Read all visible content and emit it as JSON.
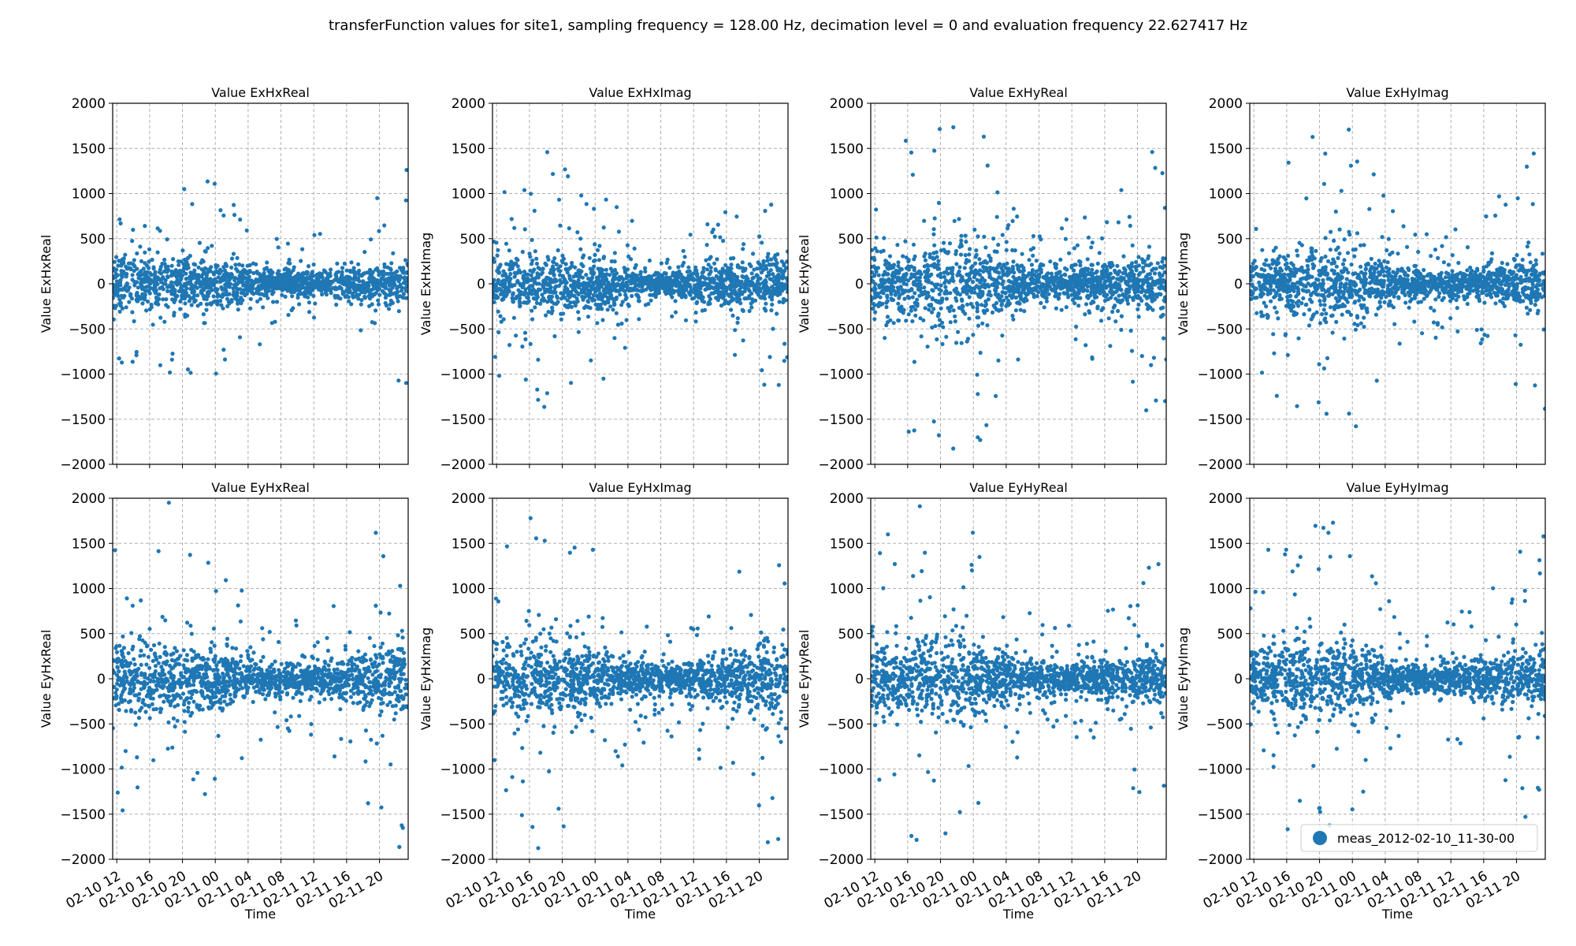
{
  "figure": {
    "suptitle": "transferFunction values for site1, sampling frequency = 128.00 Hz, decimation level = 0 and evaluation frequency 22.627417 Hz"
  },
  "chart_data": [
    {
      "type": "scatter",
      "title": "Value ExHxReal",
      "xlabel": "",
      "ylabel": "Value ExHxReal",
      "ylim": [
        -2000,
        2000
      ],
      "yticks": [
        -2000,
        -1500,
        -1000,
        -500,
        0,
        500,
        1000,
        1500,
        2000
      ],
      "xrange": [
        "2012-02-10 11:30",
        "2012-02-11 23:30"
      ],
      "xticks": [
        "02-10 12",
        "02-10 16",
        "02-10 20",
        "02-11 00",
        "02-11 04",
        "02-11 08",
        "02-11 12",
        "02-11 16",
        "02-11 20"
      ],
      "grid": true,
      "series": [
        {
          "name": "meas_2012-02-10_11-30-00",
          "color": "#1f77b4",
          "core_spread": [
            350,
            330,
            320,
            340,
            300,
            250,
            170,
            160,
            180,
            210,
            260,
            300
          ],
          "outlier_spread": [
            900,
            900,
            1000,
            1200,
            1100,
            900,
            500,
            500,
            600,
            700,
            1000,
            1400
          ]
        }
      ]
    },
    {
      "type": "scatter",
      "title": "Value ExHxImag",
      "xlabel": "",
      "ylabel": "Value ExHxImag",
      "ylim": [
        -2000,
        2000
      ],
      "yticks": [
        -2000,
        -1500,
        -1000,
        -500,
        0,
        500,
        1000,
        1500,
        2000
      ],
      "xrange": [
        "2012-02-10 11:30",
        "2012-02-11 23:30"
      ],
      "xticks": [
        "02-10 12",
        "02-10 16",
        "02-10 20",
        "02-11 00",
        "02-11 04",
        "02-11 08",
        "02-11 12",
        "02-11 16",
        "02-11 20"
      ],
      "grid": true,
      "series": [
        {
          "name": "meas_2012-02-10_11-30-00",
          "color": "#1f77b4",
          "core_spread": [
            330,
            340,
            360,
            350,
            330,
            240,
            170,
            180,
            230,
            270,
            300,
            320
          ],
          "outlier_spread": [
            1000,
            1100,
            1500,
            1400,
            1200,
            800,
            500,
            500,
            700,
            900,
            1100,
            1500
          ]
        }
      ]
    },
    {
      "type": "scatter",
      "title": "Value ExHyReal",
      "xlabel": "",
      "ylabel": "Value ExHyReal",
      "ylim": [
        -2000,
        2000
      ],
      "yticks": [
        -2000,
        -1500,
        -1000,
        -500,
        0,
        500,
        1000,
        1500,
        2000
      ],
      "xrange": [
        "2012-02-10 11:30",
        "2012-02-11 23:30"
      ],
      "xticks": [
        "02-10 12",
        "02-10 16",
        "02-10 20",
        "02-11 00",
        "02-11 04",
        "02-11 08",
        "02-11 12",
        "02-11 16",
        "02-11 20"
      ],
      "grid": true,
      "series": [
        {
          "name": "meas_2012-02-10_11-30-00",
          "color": "#1f77b4",
          "core_spread": [
            380,
            420,
            520,
            600,
            560,
            350,
            230,
            220,
            250,
            280,
            300,
            330
          ],
          "outlier_spread": [
            1300,
            1500,
            1900,
            2000,
            1800,
            1200,
            700,
            700,
            800,
            1000,
            1400,
            1800
          ]
        }
      ]
    },
    {
      "type": "scatter",
      "title": "Value ExHyImag",
      "xlabel": "",
      "ylabel": "Value ExHyImag",
      "ylim": [
        -2000,
        2000
      ],
      "yticks": [
        -2000,
        -1500,
        -1000,
        -500,
        0,
        500,
        1000,
        1500,
        2000
      ],
      "xrange": [
        "2012-02-10 11:30",
        "2012-02-11 23:30"
      ],
      "xticks": [
        "02-10 12",
        "02-10 16",
        "02-10 20",
        "02-11 00",
        "02-11 04",
        "02-11 08",
        "02-11 12",
        "02-11 16",
        "02-11 20"
      ],
      "grid": true,
      "series": [
        {
          "name": "meas_2012-02-10_11-30-00",
          "color": "#1f77b4",
          "core_spread": [
            300,
            380,
            450,
            500,
            470,
            300,
            180,
            170,
            200,
            230,
            260,
            300
          ],
          "outlier_spread": [
            1100,
            1400,
            1800,
            1900,
            1700,
            1000,
            600,
            600,
            700,
            900,
            1300,
            1900
          ]
        }
      ]
    },
    {
      "type": "scatter",
      "title": "Value EyHxReal",
      "xlabel": "Time",
      "ylabel": "Value EyHxReal",
      "ylim": [
        -2000,
        2000
      ],
      "yticks": [
        -2000,
        -1500,
        -1000,
        -500,
        0,
        500,
        1000,
        1500,
        2000
      ],
      "xrange": [
        "2012-02-10 11:30",
        "2012-02-11 23:30"
      ],
      "xticks": [
        "02-10 12",
        "02-10 16",
        "02-10 20",
        "02-11 00",
        "02-11 04",
        "02-11 08",
        "02-11 12",
        "02-11 16",
        "02-11 20"
      ],
      "grid": true,
      "series": [
        {
          "name": "meas_2012-02-10_11-30-00",
          "color": "#1f77b4",
          "core_spread": [
            420,
            450,
            500,
            420,
            360,
            250,
            180,
            200,
            260,
            340,
            420,
            480
          ],
          "outlier_spread": [
            1500,
            1700,
            2000,
            1500,
            1300,
            900,
            600,
            700,
            1000,
            1300,
            1800,
            2000
          ]
        }
      ]
    },
    {
      "type": "scatter",
      "title": "Value EyHxImag",
      "xlabel": "Time",
      "ylabel": "Value EyHxImag",
      "ylim": [
        -2000,
        2000
      ],
      "yticks": [
        -2000,
        -1500,
        -1000,
        -500,
        0,
        500,
        1000,
        1500,
        2000
      ],
      "xrange": [
        "2012-02-10 11:30",
        "2012-02-11 23:30"
      ],
      "xticks": [
        "02-10 12",
        "02-10 16",
        "02-10 20",
        "02-11 00",
        "02-11 04",
        "02-11 08",
        "02-11 12",
        "02-11 16",
        "02-11 20"
      ],
      "grid": true,
      "series": [
        {
          "name": "meas_2012-02-10_11-30-00",
          "color": "#1f77b4",
          "core_spread": [
            380,
            420,
            480,
            420,
            350,
            250,
            180,
            190,
            260,
            330,
            420,
            480
          ],
          "outlier_spread": [
            1500,
            1700,
            2000,
            1600,
            1400,
            900,
            600,
            700,
            1000,
            1300,
            1800,
            2000
          ]
        }
      ]
    },
    {
      "type": "scatter",
      "title": "Value EyHyReal",
      "xlabel": "Time",
      "ylabel": "Value EyHyReal",
      "ylim": [
        -2000,
        2000
      ],
      "yticks": [
        -2000,
        -1500,
        -1000,
        -500,
        0,
        500,
        1000,
        1500,
        2000
      ],
      "xrange": [
        "2012-02-10 11:30",
        "2012-02-11 23:30"
      ],
      "xticks": [
        "02-10 12",
        "02-10 16",
        "02-10 20",
        "02-11 00",
        "02-11 04",
        "02-11 08",
        "02-11 12",
        "02-11 16",
        "02-11 20"
      ],
      "grid": true,
      "series": [
        {
          "name": "meas_2012-02-10_11-30-00",
          "color": "#1f77b4",
          "core_spread": [
            420,
            460,
            560,
            520,
            450,
            300,
            200,
            170,
            230,
            270,
            300,
            340
          ],
          "outlier_spread": [
            1500,
            1800,
            2000,
            1900,
            1700,
            1100,
            700,
            600,
            800,
            1000,
            1400,
            1900
          ]
        }
      ]
    },
    {
      "type": "scatter",
      "title": "Value EyHyImag",
      "xlabel": "Time",
      "ylabel": "Value EyHyImag",
      "ylim": [
        -2000,
        2000
      ],
      "yticks": [
        -2000,
        -1500,
        -1000,
        -500,
        0,
        500,
        1000,
        1500,
        2000
      ],
      "xrange": [
        "2012-02-10 11:30",
        "2012-02-11 23:30"
      ],
      "xticks": [
        "02-10 12",
        "02-10 16",
        "02-10 20",
        "02-11 00",
        "02-11 04",
        "02-11 08",
        "02-11 12",
        "02-11 16",
        "02-11 20"
      ],
      "grid": true,
      "series": [
        {
          "name": "meas_2012-02-10_11-30-00",
          "color": "#1f77b4",
          "core_spread": [
            360,
            420,
            520,
            500,
            430,
            280,
            180,
            170,
            200,
            260,
            330,
            380
          ],
          "outlier_spread": [
            1300,
            1600,
            1900,
            1800,
            1600,
            1000,
            600,
            600,
            800,
            1000,
            1400,
            1900
          ]
        }
      ],
      "legend": {
        "position": "lower-right",
        "entries": [
          "meas_2012-02-10_11-30-00"
        ]
      }
    }
  ]
}
